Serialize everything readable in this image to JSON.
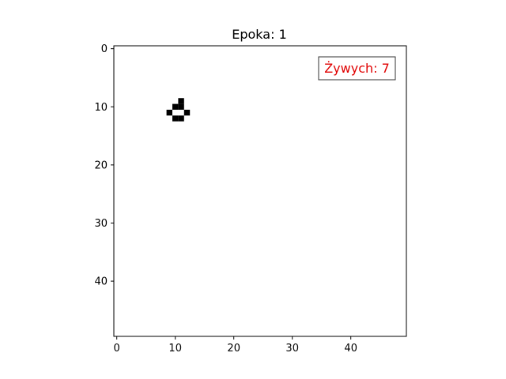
{
  "chart_data": {
    "type": "heatmap",
    "title": "Epoka: 1",
    "xlabel": "",
    "ylabel": "",
    "grid": false,
    "xlim": [
      -0.5,
      49.5
    ],
    "ylim": [
      49.5,
      -0.5
    ],
    "y_axis_inverted": true,
    "x_ticks": [
      0,
      10,
      20,
      30,
      40
    ],
    "y_ticks": [
      0,
      10,
      20,
      30,
      40
    ],
    "grid_size": [
      50,
      50
    ],
    "colormap": {
      "alive": "#000000",
      "dead": "#ffffff"
    },
    "alive_cells": [
      {
        "x": 11,
        "y": 9
      },
      {
        "x": 10,
        "y": 10
      },
      {
        "x": 11,
        "y": 10
      },
      {
        "x": 9,
        "y": 11
      },
      {
        "x": 12,
        "y": 11
      },
      {
        "x": 10,
        "y": 12
      },
      {
        "x": 11,
        "y": 12
      }
    ],
    "annotation": {
      "text": "Żywych: 7",
      "color": "#e00000",
      "box_edge_color": "#333333",
      "placement": "top-right"
    }
  }
}
